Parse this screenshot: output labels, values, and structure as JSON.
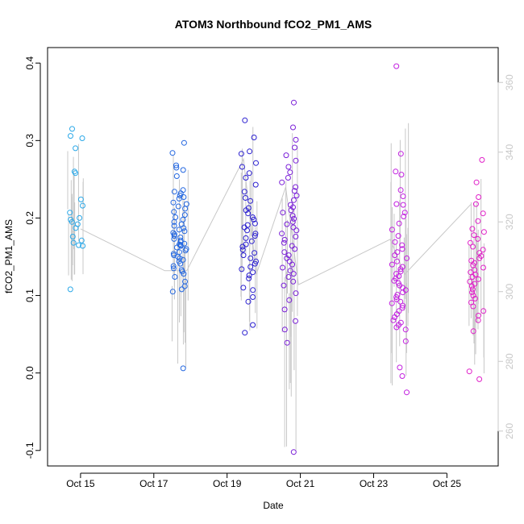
{
  "chart_data": {
    "type": "scatter",
    "title": "ATOM3 Northbound fCO2_PM1_AMS",
    "xlabel": "Date",
    "ylabel": "fCO2_PM1_AMS",
    "x_ticks": [
      {
        "day": 14.9,
        "label": "Oct 15"
      },
      {
        "day": 16.9,
        "label": "Oct 17"
      },
      {
        "day": 18.9,
        "label": "Oct 19"
      },
      {
        "day": 20.9,
        "label": "Oct 21"
      },
      {
        "day": 22.9,
        "label": "Oct 23"
      },
      {
        "day": 24.9,
        "label": "Oct 25"
      }
    ],
    "xlim": [
      14.0,
      26.3
    ],
    "ylim": [
      -0.12,
      0.42
    ],
    "y_ticks": [
      -0.1,
      0.0,
      0.1,
      0.2,
      0.3,
      0.4
    ],
    "y_tick_labels": [
      "-0.1",
      "0.0",
      "0.1",
      "0.2",
      "0.3",
      "0.4"
    ],
    "y2lim": [
      250,
      370
    ],
    "y2_ticks": [
      260,
      280,
      300,
      320,
      340,
      360
    ],
    "y2_tick_labels": [
      "260",
      "280",
      "300",
      "320",
      "340",
      "360"
    ],
    "legend": "none",
    "grid": false,
    "flights": [
      {
        "x": 14.78,
        "color": "#2aa8e8",
        "values": [
          0.315,
          0.306,
          0.303,
          0.29,
          0.26,
          0.258,
          0.224,
          0.216,
          0.207,
          0.2,
          0.198,
          0.195,
          0.192,
          0.187,
          0.176,
          0.171,
          0.168,
          0.165,
          0.164,
          0.108
        ]
      },
      {
        "x": 17.62,
        "color": "#2266e0",
        "values": [
          0.297,
          0.284,
          0.268,
          0.265,
          0.262,
          0.254,
          0.236,
          0.234,
          0.232,
          0.229,
          0.227,
          0.225,
          0.22,
          0.218,
          0.215,
          0.212,
          0.208,
          0.204,
          0.201,
          0.198,
          0.195,
          0.192,
          0.19,
          0.187,
          0.185,
          0.183,
          0.181,
          0.179,
          0.177,
          0.175,
          0.173,
          0.171,
          0.169,
          0.167,
          0.166,
          0.165,
          0.164,
          0.162,
          0.16,
          0.158,
          0.156,
          0.154,
          0.152,
          0.15,
          0.148,
          0.146,
          0.144,
          0.141,
          0.138,
          0.135,
          0.133,
          0.131,
          0.128,
          0.124,
          0.118,
          0.112,
          0.108,
          0.105,
          0.006
        ]
      },
      {
        "x": 19.48,
        "color": "#2a1fd0",
        "values": [
          0.326,
          0.304,
          0.286,
          0.283,
          0.271,
          0.266,
          0.258,
          0.252,
          0.243,
          0.234,
          0.226,
          0.222,
          0.213,
          0.21,
          0.206,
          0.201,
          0.198,
          0.193,
          0.191,
          0.188,
          0.184,
          0.18,
          0.177,
          0.174,
          0.17,
          0.166,
          0.163,
          0.159,
          0.155,
          0.152,
          0.148,
          0.144,
          0.141,
          0.137,
          0.134,
          0.13,
          0.126,
          0.122,
          0.11,
          0.107,
          0.098,
          0.092,
          0.062,
          0.052
        ]
      },
      {
        "x": 20.6,
        "color": "#7a1fd8",
        "values": [
          0.349,
          0.317,
          0.301,
          0.291,
          0.281,
          0.274,
          0.266,
          0.259,
          0.252,
          0.246,
          0.24,
          0.235,
          0.229,
          0.223,
          0.217,
          0.214,
          0.21,
          0.207,
          0.203,
          0.199,
          0.195,
          0.192,
          0.188,
          0.184,
          0.18,
          0.176,
          0.172,
          0.168,
          0.164,
          0.16,
          0.156,
          0.152,
          0.148,
          0.144,
          0.14,
          0.136,
          0.132,
          0.128,
          0.124,
          0.118,
          0.113,
          0.103,
          0.094,
          0.082,
          0.067,
          0.056,
          0.039,
          -0.102
        ]
      },
      {
        "x": 23.6,
        "color": "#c21fe0",
        "values": [
          0.396,
          0.283,
          0.26,
          0.256,
          0.236,
          0.228,
          0.218,
          0.217,
          0.207,
          0.202,
          0.193,
          0.185,
          0.177,
          0.169,
          0.165,
          0.16,
          0.156,
          0.152,
          0.148,
          0.144,
          0.14,
          0.137,
          0.134,
          0.131,
          0.128,
          0.125,
          0.122,
          0.119,
          0.116,
          0.113,
          0.11,
          0.107,
          0.104,
          0.101,
          0.098,
          0.095,
          0.092,
          0.09,
          0.087,
          0.084,
          0.08,
          0.076,
          0.072,
          0.068,
          0.065,
          0.062,
          0.059,
          0.056,
          0.041,
          0.007,
          -0.004,
          -0.025
        ]
      },
      {
        "x": 25.72,
        "color": "#e01fc8",
        "values": [
          0.275,
          0.246,
          0.227,
          0.218,
          0.206,
          0.196,
          0.186,
          0.182,
          0.178,
          0.173,
          0.168,
          0.163,
          0.159,
          0.155,
          0.151,
          0.148,
          0.145,
          0.142,
          0.139,
          0.136,
          0.133,
          0.13,
          0.127,
          0.124,
          0.121,
          0.118,
          0.115,
          0.112,
          0.108,
          0.104,
          0.1,
          0.096,
          0.091,
          0.086,
          0.08,
          0.074,
          0.068,
          0.054,
          0.002,
          -0.008
        ]
      }
    ],
    "trace_y2": [
      {
        "x": 14.9,
        "y": 318
      },
      {
        "x": 17.2,
        "y": 306
      },
      {
        "x": 17.8,
        "y": 306
      },
      {
        "x": 19.35,
        "y": 338
      },
      {
        "x": 19.7,
        "y": 305
      },
      {
        "x": 20.5,
        "y": 330
      },
      {
        "x": 20.85,
        "y": 302
      },
      {
        "x": 23.35,
        "y": 315
      },
      {
        "x": 23.75,
        "y": 305
      },
      {
        "x": 25.55,
        "y": 325
      }
    ]
  }
}
